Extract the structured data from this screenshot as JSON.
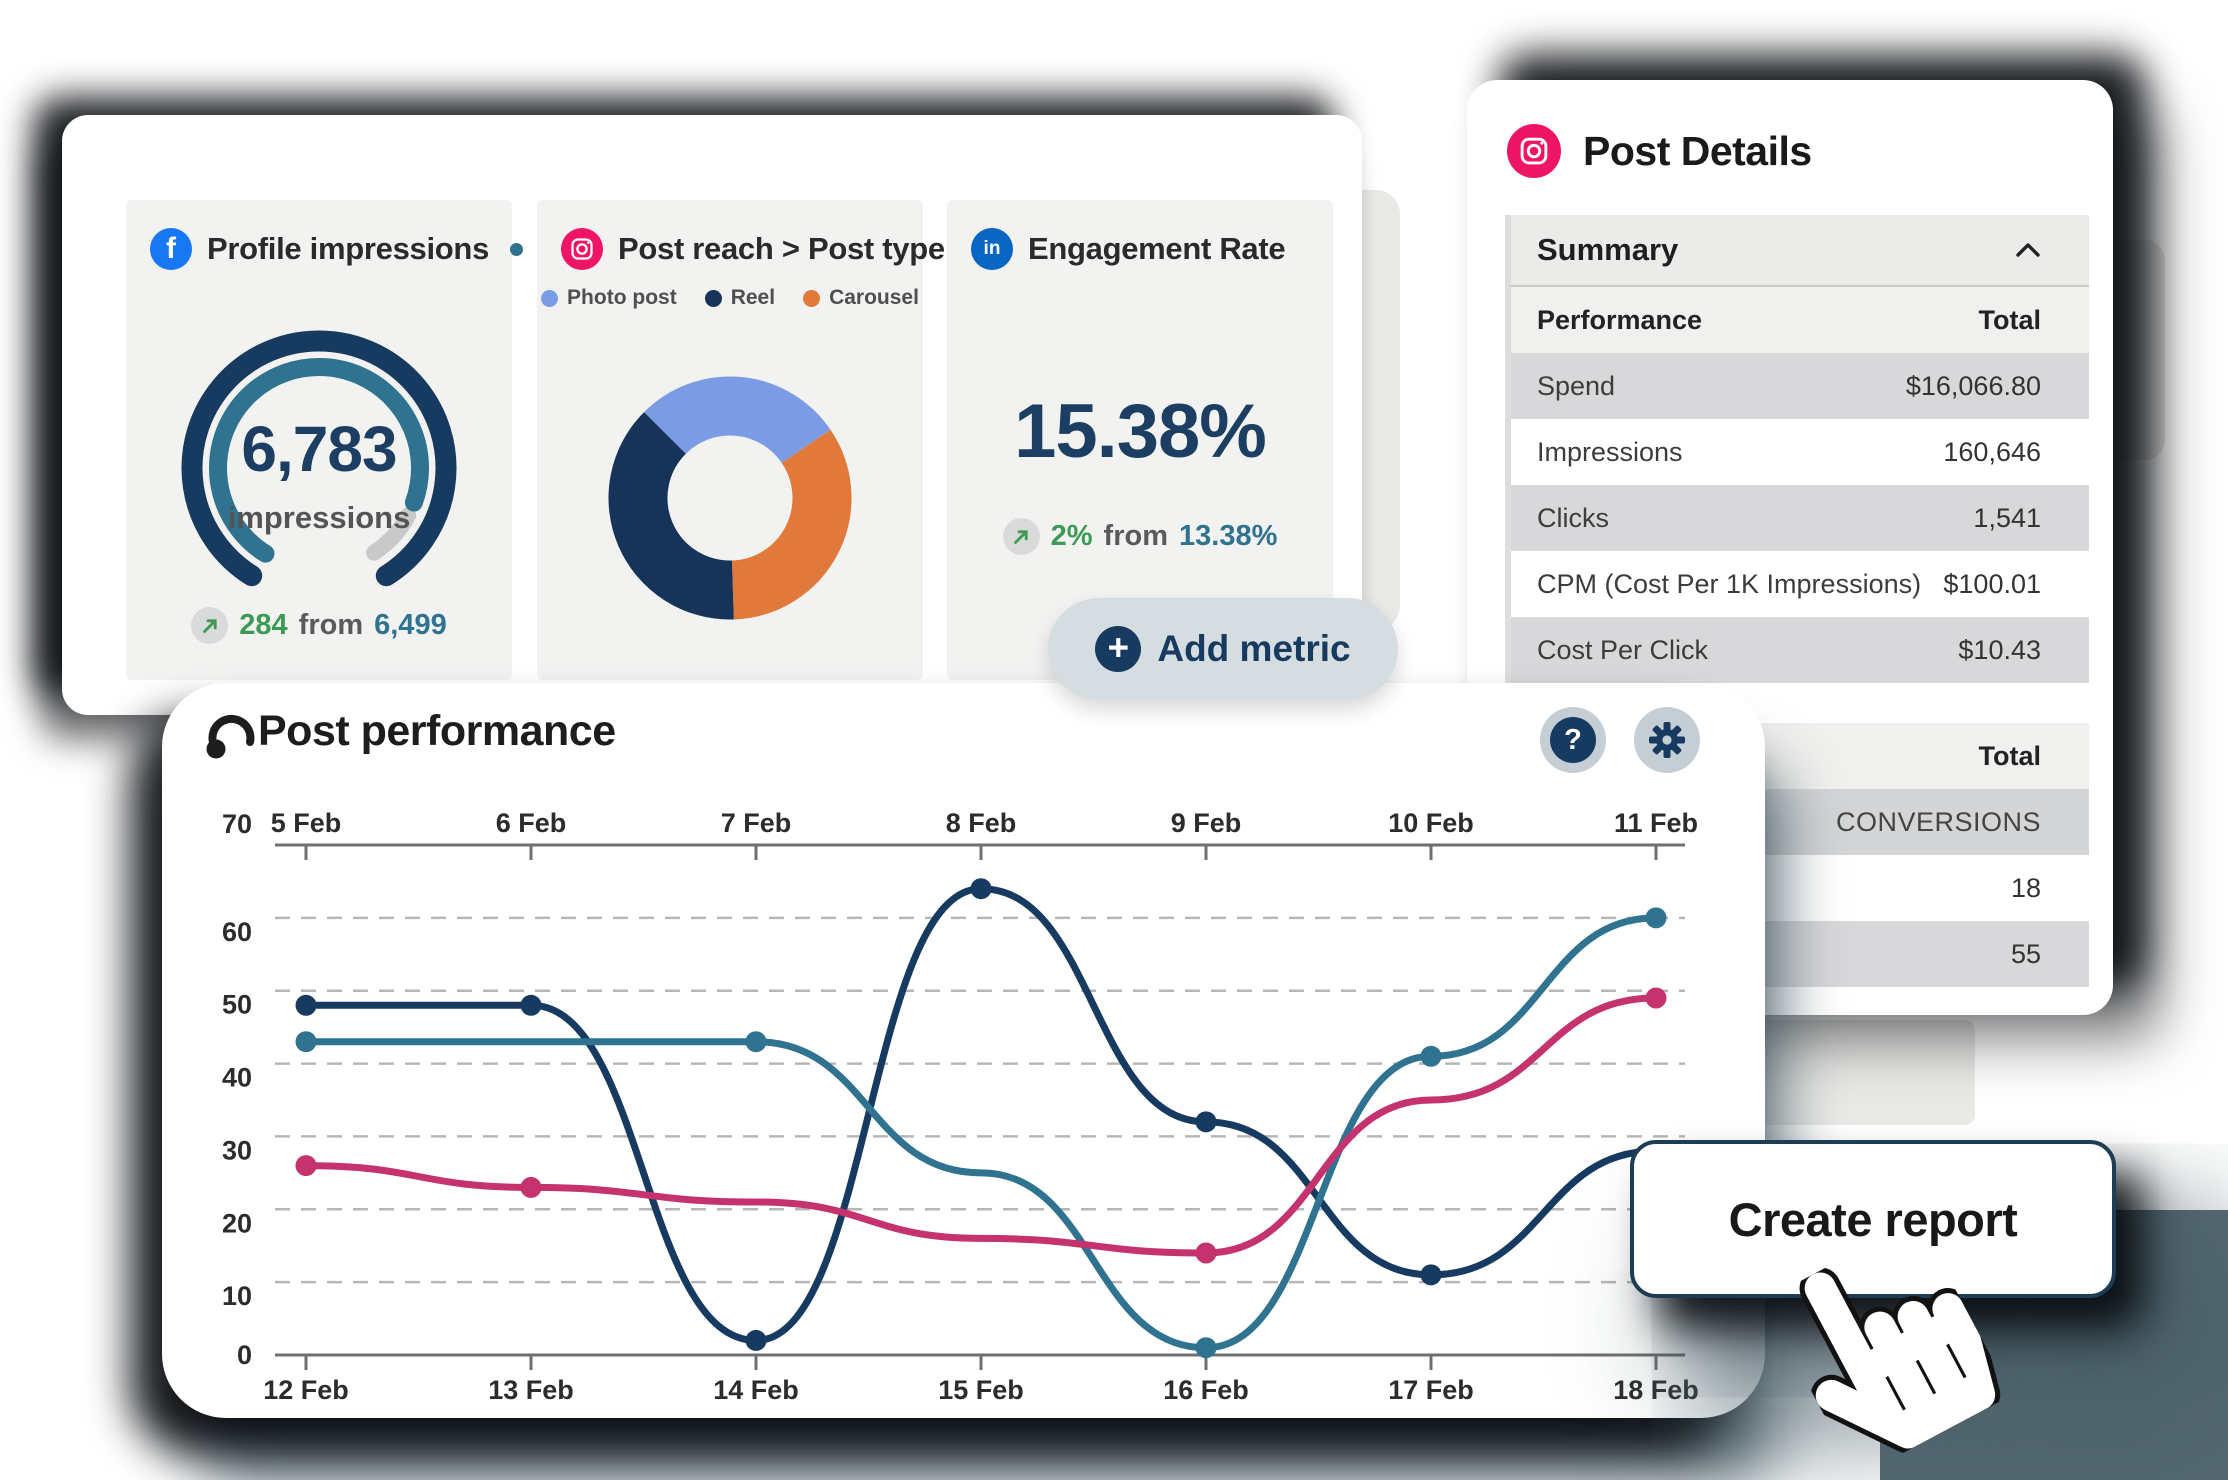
{
  "brand_colors": {
    "facebook": "#1877f2",
    "instagram": "#ee1566",
    "linkedin": "#0a66c2"
  },
  "icons": {
    "facebook_glyph": "f",
    "linkedin_glyph": "in",
    "plus_glyph": "+",
    "help_glyph": "?"
  },
  "metrics_card": {
    "widgets": [
      {
        "platform": "facebook",
        "title": "Profile impressions",
        "value_label": "6,783",
        "unit_label": "impressions",
        "delta_value": "284",
        "delta_join": "from",
        "delta_prev": "6,499"
      },
      {
        "platform": "instagram",
        "title": "Post reach > Post type",
        "legend": [
          {
            "label": "Photo post",
            "color": "#7b9ce4"
          },
          {
            "label": "Reel",
            "color": "#16335a"
          },
          {
            "label": "Carousel",
            "color": "#e0793a"
          }
        ]
      },
      {
        "platform": "linkedin",
        "title": "Engagement Rate",
        "value": "15.38%",
        "delta_value": "2%",
        "delta_join": "from",
        "delta_prev": "13.38%"
      }
    ]
  },
  "post_details": {
    "title": "Post Details",
    "section_title": "Summary",
    "table1": {
      "col1": "Performance",
      "col2": "Total",
      "rows": [
        [
          "Spend",
          "$16,066.80"
        ],
        [
          "Impressions",
          "160,646"
        ],
        [
          "Clicks",
          "1,541"
        ],
        [
          "CPM (Cost Per 1K Impressions)",
          "$100.01"
        ],
        [
          "Cost Per Click",
          "$10.43"
        ]
      ]
    },
    "table2": {
      "col2": "Total",
      "row_label": "CONVERSIONS",
      "values": [
        "18",
        "55"
      ]
    }
  },
  "add_metric": {
    "label": "Add metric"
  },
  "post_performance": {
    "title": "Post performance"
  },
  "create_report": {
    "label": "Create report"
  },
  "chart_data": [
    {
      "type": "gauge",
      "metric": "Profile impressions",
      "platform": "Facebook",
      "value": 6783,
      "previous": 6499,
      "delta": 284,
      "unit": "impressions",
      "colors": {
        "progress_outer": "#173a60",
        "progress_inner": "#2f7390",
        "remainder": "#c9c9c9"
      }
    },
    {
      "type": "pie",
      "donut": true,
      "metric": "Post reach by post type",
      "platform": "Instagram",
      "labels": [
        "Photo post",
        "Reel",
        "Carousel"
      ],
      "values_percent": [
        28,
        38,
        34
      ],
      "colors": [
        "#7b9ce4",
        "#16335a",
        "#e0793a"
      ],
      "start_angle": -45,
      "draw_order": [
        0,
        2,
        1
      ]
    },
    {
      "type": "stat",
      "metric": "Engagement Rate",
      "platform": "LinkedIn",
      "value_percent": 15.38,
      "previous_percent": 13.38,
      "delta_percent": 2
    },
    {
      "type": "line",
      "title": "Post performance",
      "x_top": [
        "5 Feb",
        "6 Feb",
        "7 Feb",
        "8 Feb",
        "9 Feb",
        "10 Feb",
        "11 Feb"
      ],
      "x_bottom": [
        "12 Feb",
        "13 Feb",
        "14 Feb",
        "15 Feb",
        "16 Feb",
        "17 Feb",
        "18 Feb"
      ],
      "ylim": [
        0,
        70
      ],
      "y_ticks": [
        0,
        10,
        20,
        30,
        40,
        50,
        60,
        70
      ],
      "grid": "dashed-horizontal",
      "legend_position": "none",
      "series": [
        {
          "name": "dark-navy-series",
          "color": "#173a60",
          "values": [
            48,
            48,
            2,
            64,
            32,
            11,
            28
          ],
          "markers": [
            0,
            1,
            2,
            3,
            4,
            5
          ]
        },
        {
          "name": "teal-series",
          "color": "#2f7390",
          "values": [
            43,
            43,
            43,
            25,
            1,
            41,
            60
          ],
          "markers": [
            0,
            2,
            4,
            5,
            6
          ]
        },
        {
          "name": "pink-series",
          "color": "#c5336f",
          "values": [
            26,
            23,
            21,
            16,
            14,
            35,
            49
          ],
          "markers": [
            0,
            1,
            4,
            6
          ]
        }
      ]
    }
  ]
}
